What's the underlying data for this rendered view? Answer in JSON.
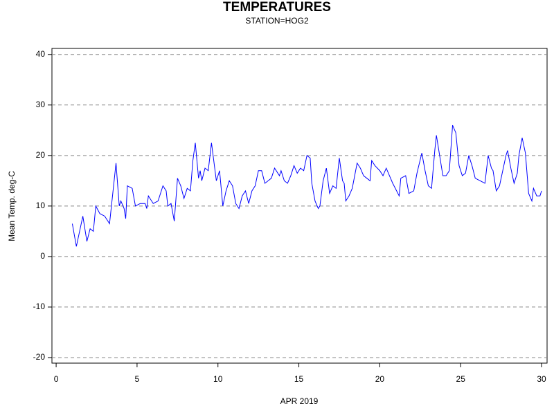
{
  "chart_data": {
    "type": "line",
    "title": "TEMPERATURES",
    "subtitle": "STATION=HOG2",
    "x_label": "APR 2019",
    "y_label": "Mean Temp. deg-C",
    "xlim": [
      -0.26,
      30.34
    ],
    "ylim": [
      -21.1,
      41.2
    ],
    "xticks": [
      0,
      5,
      10,
      15,
      20,
      25,
      30
    ],
    "yticks": [
      -20,
      -10,
      0,
      10,
      20,
      30,
      40
    ],
    "grid": true,
    "series": [
      {
        "name": "Mean Temp",
        "color": "#0000ff",
        "x": [
          1.0,
          1.25,
          1.65,
          1.9,
          2.1,
          2.3,
          2.45,
          2.7,
          3.0,
          3.3,
          3.7,
          3.9,
          4.0,
          4.2,
          4.3,
          4.4,
          4.7,
          4.9,
          5.2,
          5.5,
          5.6,
          5.7,
          6.0,
          6.3,
          6.6,
          6.8,
          6.9,
          7.1,
          7.3,
          7.5,
          7.7,
          7.9,
          8.1,
          8.3,
          8.45,
          8.6,
          8.8,
          8.9,
          9.0,
          9.2,
          9.4,
          9.6,
          9.7,
          9.9,
          10.1,
          10.3,
          10.5,
          10.7,
          10.9,
          11.1,
          11.3,
          11.5,
          11.7,
          11.9,
          12.1,
          12.3,
          12.5,
          12.7,
          12.9,
          13.1,
          13.3,
          13.5,
          13.8,
          13.9,
          14.1,
          14.3,
          14.5,
          14.7,
          14.9,
          15.1,
          15.3,
          15.5,
          15.7,
          15.8,
          16.0,
          16.2,
          16.3,
          16.5,
          16.7,
          16.9,
          17.1,
          17.3,
          17.5,
          17.7,
          17.8,
          17.9,
          18.1,
          18.3,
          18.6,
          18.8,
          19.0,
          19.2,
          19.4,
          19.5,
          19.7,
          20.0,
          20.2,
          20.4,
          20.6,
          20.8,
          21.2,
          21.3,
          21.6,
          21.8,
          22.1,
          22.3,
          22.6,
          22.8,
          23.0,
          23.2,
          23.4,
          23.5,
          23.7,
          23.9,
          24.1,
          24.3,
          24.5,
          24.7,
          24.9,
          25.1,
          25.3,
          25.5,
          25.7,
          25.9,
          26.2,
          26.5,
          26.7,
          26.9,
          27.0,
          27.2,
          27.4,
          27.6,
          27.8,
          27.9,
          28.1,
          28.3,
          28.5,
          28.6,
          28.8,
          29.0,
          29.2,
          29.4,
          29.5,
          29.7,
          29.9,
          30.0
        ],
        "values": [
          6.5,
          2,
          8,
          3,
          5.5,
          5,
          10,
          8.5,
          8,
          6.5,
          18.5,
          10,
          11,
          9.5,
          7.5,
          14,
          13.5,
          10,
          10.5,
          10.5,
          9.5,
          12,
          10.5,
          11,
          14,
          13,
          10,
          10.5,
          7,
          15.5,
          14,
          11.5,
          13.5,
          13,
          19,
          22.5,
          15.5,
          17,
          15,
          17.5,
          17,
          22.5,
          20,
          15,
          17,
          10,
          13,
          15,
          14,
          10.5,
          9.5,
          12,
          13,
          10.5,
          13,
          14,
          17,
          17,
          14.5,
          15,
          15.5,
          17.5,
          16,
          17,
          15,
          14.5,
          16,
          18,
          16.5,
          17.5,
          17,
          20,
          19.5,
          14.5,
          11,
          9.5,
          10,
          15,
          17.5,
          12.5,
          14,
          13.5,
          19.5,
          15,
          14.5,
          11,
          12,
          13.5,
          18.5,
          17.5,
          16,
          15.5,
          15,
          19,
          18,
          17,
          16,
          17.5,
          16,
          14.5,
          12,
          15.5,
          16,
          12.5,
          13,
          16.5,
          20.5,
          17,
          14,
          13.5,
          21,
          24,
          20,
          16,
          16,
          17,
          26,
          24.5,
          18,
          16,
          16.5,
          20,
          18,
          15.5,
          15,
          14.5,
          20,
          17.5,
          17,
          13,
          14,
          17,
          20,
          21,
          17.5,
          14.5,
          16.5,
          20,
          23.5,
          20.5,
          12.5,
          11,
          13.5,
          12,
          12,
          13
        ]
      }
    ]
  }
}
